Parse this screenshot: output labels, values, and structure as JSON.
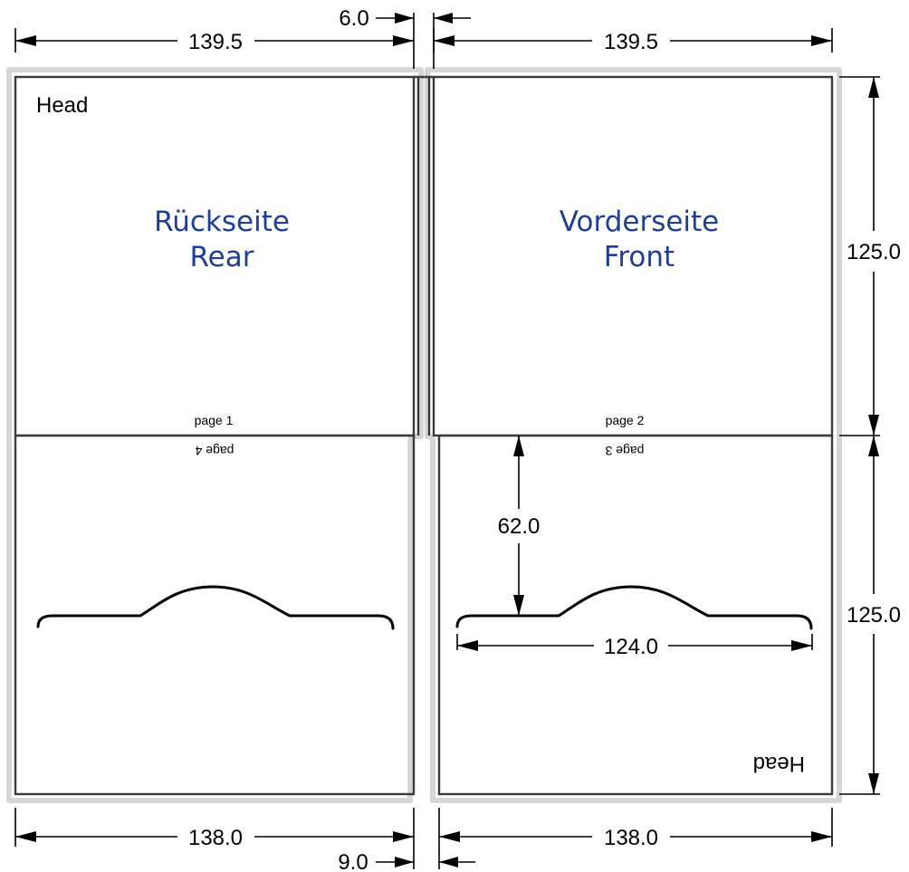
{
  "panels": {
    "rear": {
      "title_de": "Rückseite",
      "title_en": "Rear"
    },
    "front": {
      "title_de": "Vorderseite",
      "title_en": "Front"
    },
    "head_label": "Head",
    "head_label_flipped": "Head"
  },
  "pages": {
    "page1": "page 1",
    "page2": "page 2",
    "page3": "page 3",
    "page4": "page 4"
  },
  "dimensions": {
    "top_left_width": "139.5",
    "top_right_width": "139.5",
    "spine_top": "6.0",
    "right_upper_height": "125.0",
    "right_lower_height": "125.0",
    "bottom_left_width": "138.0",
    "bottom_right_width": "138.0",
    "gap_bottom": "9.0",
    "pocket_depth": "62.0",
    "pocket_cut_width": "124.0"
  },
  "colors": {
    "bleed_outline": "#d6d6d6",
    "trim_line": "#3a3a3a",
    "side_title": "#1f3f96",
    "dimension_line": "#000000"
  }
}
